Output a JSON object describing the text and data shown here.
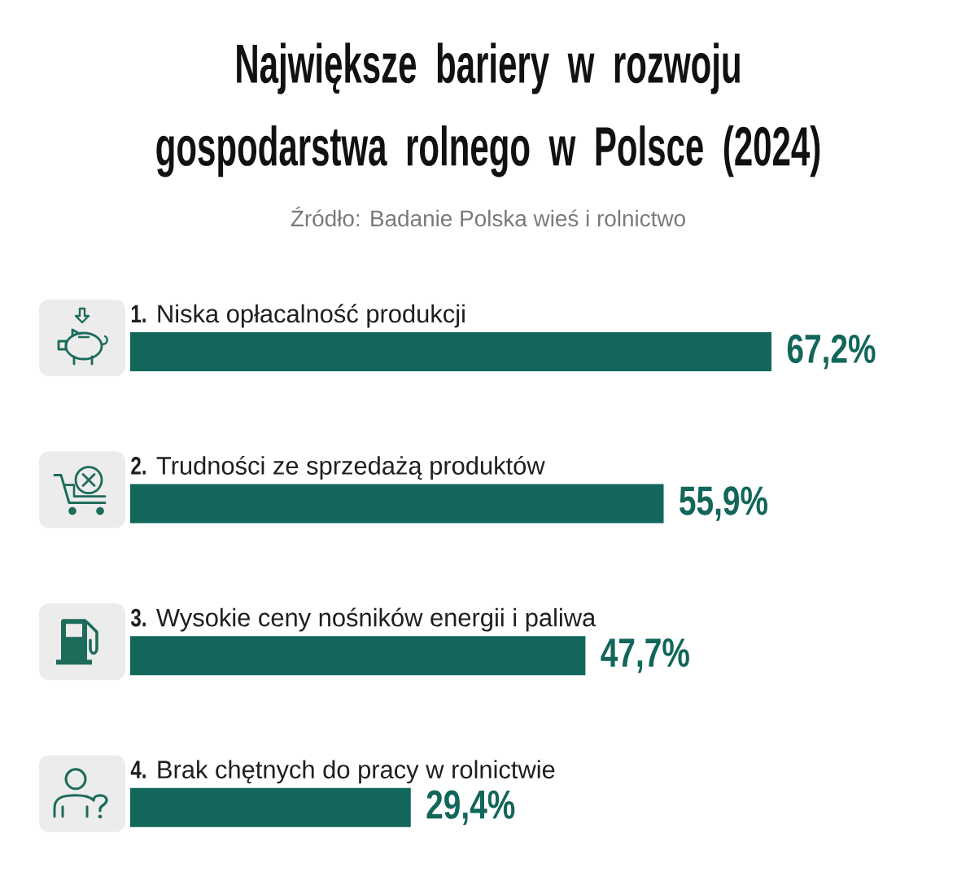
{
  "chart_data": {
    "type": "bar",
    "orientation": "horizontal",
    "title": "Największe bariery w rozwoju gospodarstwa rolnego w Polsce (2024)",
    "annotations": [
      "Źródło: Badanie Polska wieś i rolnictwo"
    ],
    "categories": [
      "**1.** Niska opłacalność produkcji",
      "**2.** Trudności ze sprzedażą produktów",
      "**3.** Wysokie ceny nośników energii i paliwa",
      "**4.** Brak chętnych do pracy w rolnictwie"
    ],
    "values": [
      67.2,
      55.9,
      47.7,
      29.4
    ],
    "value_labels": [
      "67,2%",
      "55,9%",
      "47,7%",
      "29,4%"
    ],
    "color": "#12665a",
    "tick_labels": "y"
  }
}
